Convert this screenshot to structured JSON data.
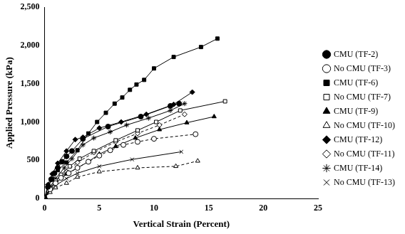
{
  "chart_data": {
    "type": "line",
    "x_label": "Vertical Strain (Percent)",
    "y_label": "Applied Pressure (kPa)",
    "xlim": [
      0,
      25
    ],
    "xticks": [
      0,
      5,
      10,
      15,
      20,
      25
    ],
    "ylim": [
      0,
      2500
    ],
    "yticks": [
      0,
      500,
      1000,
      1500,
      2000,
      2500
    ],
    "grid": false,
    "legend": "right",
    "series": [
      {
        "name": "CMU (TF-2)",
        "color": "#000000",
        "marker": "circle",
        "line_style": "solid",
        "x": [
          0,
          0.3,
          0.6,
          0.9,
          1.2,
          1.6,
          2,
          2.5,
          3.5,
          5.8,
          8.8,
          11.5,
          12.3
        ],
        "values": [
          0,
          150,
          250,
          330,
          400,
          480,
          550,
          620,
          780,
          940,
          1070,
          1210,
          1240
        ]
      },
      {
        "name": "No CMU (TF-3)",
        "color": "#000000",
        "marker": "circle-open",
        "line_style": "dashed",
        "x": [
          0,
          0.5,
          1,
          1.5,
          2.2,
          3,
          4,
          5,
          6,
          7.2,
          8.5,
          10,
          13.8
        ],
        "values": [
          0,
          120,
          200,
          270,
          330,
          400,
          480,
          560,
          630,
          700,
          740,
          780,
          840
        ]
      },
      {
        "name": "CMU (TF-6)",
        "color": "#000000",
        "marker": "square",
        "line_style": "solid",
        "x": [
          0,
          0.3,
          0.7,
          1.2,
          2,
          3,
          4,
          4.8,
          5.6,
          6.4,
          7.1,
          7.8,
          8.4,
          9.1,
          10,
          11.8,
          14.3,
          15.8
        ],
        "values": [
          0,
          150,
          250,
          370,
          470,
          630,
          850,
          1000,
          1120,
          1240,
          1320,
          1420,
          1490,
          1550,
          1700,
          1850,
          1980,
          2090
        ]
      },
      {
        "name": "No CMU (TF-7)",
        "color": "#000000",
        "marker": "square-open",
        "line_style": "solid",
        "x": [
          0,
          0.5,
          1,
          1.5,
          2.3,
          3.2,
          4.5,
          6.5,
          8.5,
          10.2,
          12.4,
          16.5
        ],
        "values": [
          0,
          130,
          230,
          310,
          420,
          520,
          620,
          760,
          890,
          1000,
          1150,
          1270
        ]
      },
      {
        "name": "CMU (TF-9)",
        "color": "#000000",
        "marker": "triangle",
        "line_style": "solid",
        "x": [
          0,
          0.5,
          1,
          2,
          3,
          4,
          5,
          6.5,
          8.3,
          10.5,
          13,
          15.5
        ],
        "values": [
          0,
          120,
          200,
          320,
          400,
          480,
          580,
          680,
          790,
          900,
          990,
          1070
        ]
      },
      {
        "name": "No CMU (TF-10)",
        "color": "#000000",
        "marker": "triangle-open",
        "line_style": "dashed",
        "x": [
          0,
          0.5,
          1,
          2,
          3,
          5,
          8.5,
          12,
          14
        ],
        "values": [
          0,
          80,
          140,
          200,
          280,
          350,
          400,
          420,
          490
        ]
      },
      {
        "name": "CMU (TF-12)",
        "color": "#000000",
        "marker": "diamond",
        "line_style": "solid",
        "x": [
          0,
          0.3,
          0.7,
          1.2,
          2,
          2.8,
          3.5,
          5,
          7,
          9.3,
          11.8,
          13.5
        ],
        "values": [
          0,
          180,
          320,
          460,
          620,
          770,
          800,
          920,
          1000,
          1100,
          1230,
          1390
        ]
      },
      {
        "name": "No CMU (TF-11)",
        "color": "#000000",
        "marker": "diamond-open",
        "line_style": "dashed",
        "x": [
          0,
          0.5,
          1,
          2,
          3,
          4.5,
          6.5,
          8.5,
          10.5,
          12.8
        ],
        "values": [
          0,
          130,
          220,
          350,
          470,
          600,
          740,
          850,
          960,
          1100
        ]
      },
      {
        "name": "CMU (TF-14)",
        "color": "#000000",
        "marker": "star",
        "line_style": "solid",
        "x": [
          0,
          0.5,
          1,
          1.8,
          2.5,
          3.5,
          4.5,
          6,
          7.5,
          9.5,
          11.5,
          12.8
        ],
        "values": [
          0,
          150,
          260,
          400,
          520,
          700,
          790,
          870,
          960,
          1050,
          1150,
          1240
        ]
      },
      {
        "name": "No CMU (TF-13)",
        "color": "#000000",
        "marker": "cross",
        "line_style": "solid",
        "x": [
          0,
          0.5,
          1,
          2,
          3,
          5,
          8,
          12.5
        ],
        "values": [
          0,
          100,
          170,
          260,
          330,
          420,
          510,
          610
        ]
      }
    ]
  }
}
